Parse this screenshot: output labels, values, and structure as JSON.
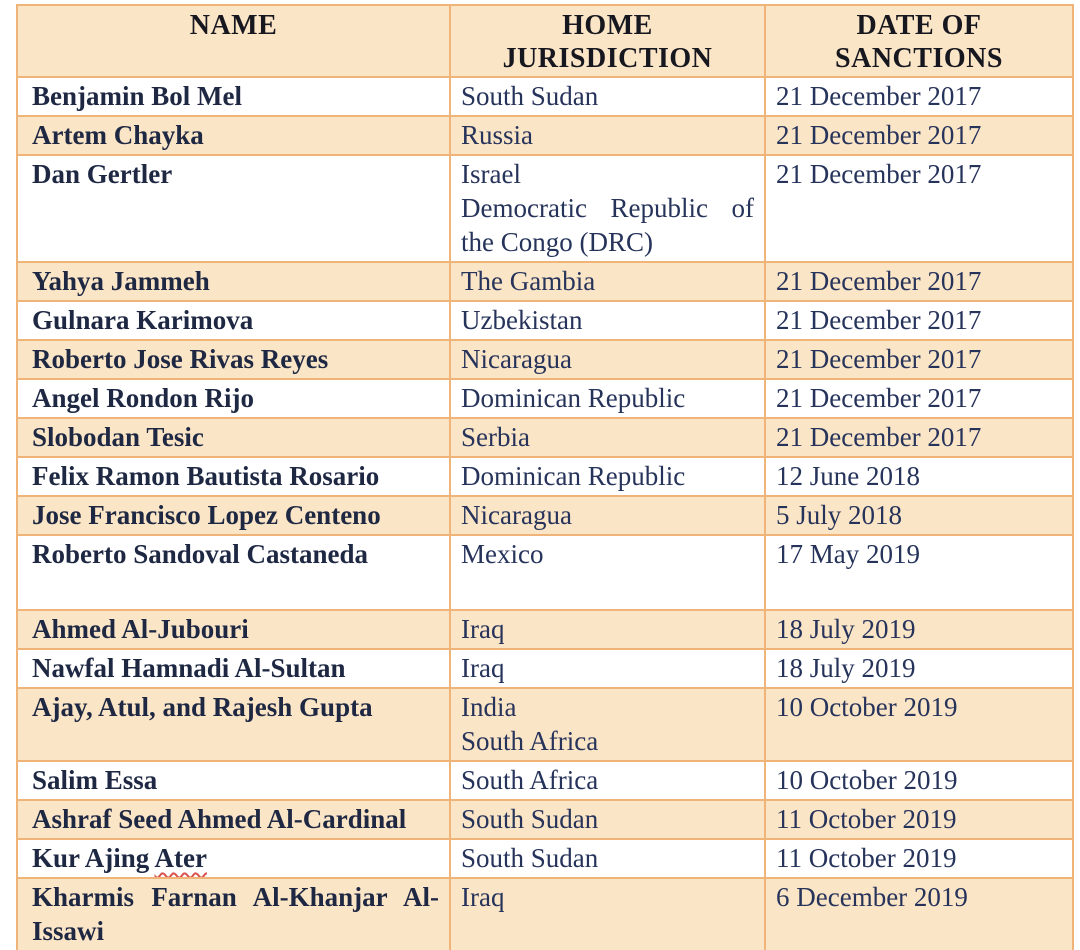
{
  "table": {
    "columns": [
      {
        "label": "NAME"
      },
      {
        "label": "HOME JURISDICTION"
      },
      {
        "label": "DATE OF SANCTIONS"
      }
    ],
    "rows": [
      {
        "name": "Benjamin Bol Mel",
        "jurisdiction": [
          "South Sudan"
        ],
        "date": "21 December 2017",
        "shaded": false
      },
      {
        "name": "Artem Chayka",
        "jurisdiction": [
          "Russia"
        ],
        "date": "21 December 2017",
        "shaded": true
      },
      {
        "name": "Dan Gertler",
        "jurisdiction": [
          "Israel",
          "Democratic Republic of the Congo (DRC)"
        ],
        "date": "21 December 2017",
        "shaded": false
      },
      {
        "name": "Yahya Jammeh",
        "jurisdiction": [
          "The Gambia"
        ],
        "date": "21 December 2017",
        "shaded": true
      },
      {
        "name": "Gulnara Karimova",
        "jurisdiction": [
          "Uzbekistan"
        ],
        "date": "21 December 2017",
        "shaded": false
      },
      {
        "name": "Roberto Jose Rivas Reyes",
        "jurisdiction": [
          "Nicaragua"
        ],
        "date": "21 December 2017",
        "shaded": true
      },
      {
        "name": "Angel Rondon Rijo",
        "jurisdiction": [
          "Dominican Republic"
        ],
        "date": "21 December 2017",
        "shaded": false
      },
      {
        "name": "Slobodan Tesic",
        "jurisdiction": [
          "Serbia"
        ],
        "date": "21 December 2017",
        "shaded": true
      },
      {
        "name": "Felix Ramon Bautista Rosario",
        "jurisdiction": [
          "Dominican Republic"
        ],
        "date": "12 June 2018",
        "shaded": false
      },
      {
        "name": "Jose Francisco Lopez Centeno",
        "jurisdiction": [
          "Nicaragua"
        ],
        "date": "5 July 2018",
        "shaded": true
      },
      {
        "name": "Roberto Sandoval Castaneda",
        "jurisdiction": [
          "Mexico"
        ],
        "date": "17 May 2019",
        "shaded": false,
        "tall": true
      },
      {
        "name": "Ahmed Al-Jubouri",
        "jurisdiction": [
          "Iraq"
        ],
        "date": "18 July 2019",
        "shaded": true
      },
      {
        "name": "Nawfal Hamnadi Al-Sultan",
        "jurisdiction": [
          "Iraq"
        ],
        "date": "18 July 2019",
        "shaded": false
      },
      {
        "name": "Ajay, Atul, and Rajesh Gupta",
        "jurisdiction": [
          "India",
          "South Africa"
        ],
        "date": "10 October 2019",
        "shaded": true
      },
      {
        "name": "Salim Essa",
        "jurisdiction": [
          "South Africa"
        ],
        "date": "10 October 2019",
        "shaded": false
      },
      {
        "name": "Ashraf Seed Ahmed Al-Cardinal",
        "jurisdiction": [
          "South Sudan"
        ],
        "date": "11 October 2019",
        "shaded": true
      },
      {
        "name": "Kur Ajing Ater",
        "jurisdiction": [
          "South Sudan"
        ],
        "date": "11 October 2019",
        "shaded": false,
        "misspelled_word": "Ater"
      },
      {
        "name": "Kharmis Farnan Al-Khanjar Al-Issawi",
        "jurisdiction": [
          "Iraq"
        ],
        "date": "6 December 2019",
        "shaded": true
      }
    ]
  },
  "colors": {
    "row_shade": "#FBE5C7",
    "border": "#F0B478",
    "header_text": "#17171F",
    "name_text": "#1E2843",
    "body_text": "#26335A",
    "spellcheck_underline": "#D9534F"
  }
}
